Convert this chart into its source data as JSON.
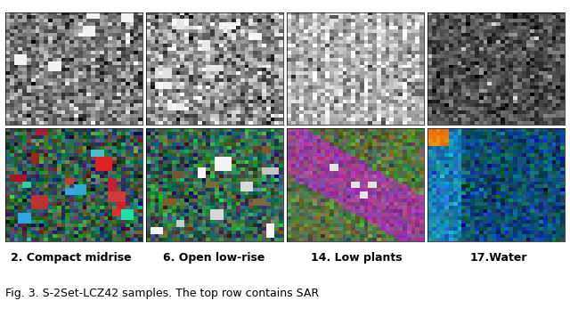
{
  "labels": [
    "2. Compact midrise",
    "6. Open low-rise",
    "14. Low plants",
    "17.Water"
  ],
  "caption": "Fig. 3. S-2Set-LCZ42 samples. The top row contains SAR",
  "fig_width": 6.4,
  "fig_height": 3.47,
  "bg_color": "#ffffff",
  "label_fontsize": 9,
  "caption_fontsize": 9,
  "seed": 42
}
